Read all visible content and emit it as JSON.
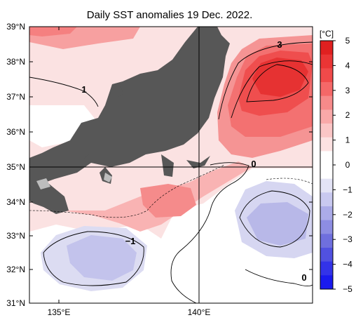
{
  "title": "Daily SST anomalies 19 Dec. 2022.",
  "unit": "[°C]",
  "lat_labels": [
    "39°N",
    "38°N",
    "37°N",
    "36°N",
    "35°N",
    "34°N",
    "33°N",
    "32°N",
    "31°N"
  ],
  "lon_labels": [
    "135°E",
    "140°E"
  ],
  "colorbar": {
    "labels": [
      "5",
      "4",
      "3",
      "2",
      "1",
      "0",
      "−1",
      "−2",
      "−3",
      "−4",
      "−5"
    ],
    "colors": [
      "#e02020",
      "#ea3535",
      "#f04a4a",
      "#f56868",
      "#f78a8a",
      "#f9a9a9",
      "#fbc6c6",
      "#fde2e2",
      "#ffffff",
      "#ffffff",
      "#e4e4f6",
      "#c9c9f0",
      "#ababe8",
      "#8d8de2",
      "#6f6fdd",
      "#5151e0",
      "#3333e8",
      "#1a1aee"
    ]
  },
  "contour_labels": [
    "1",
    "3",
    "0",
    "−1",
    "0"
  ],
  "colors": {
    "land": "#575757",
    "grid": "#000000",
    "warm": "#f5a3a3",
    "cool": "#dcdcf2"
  }
}
